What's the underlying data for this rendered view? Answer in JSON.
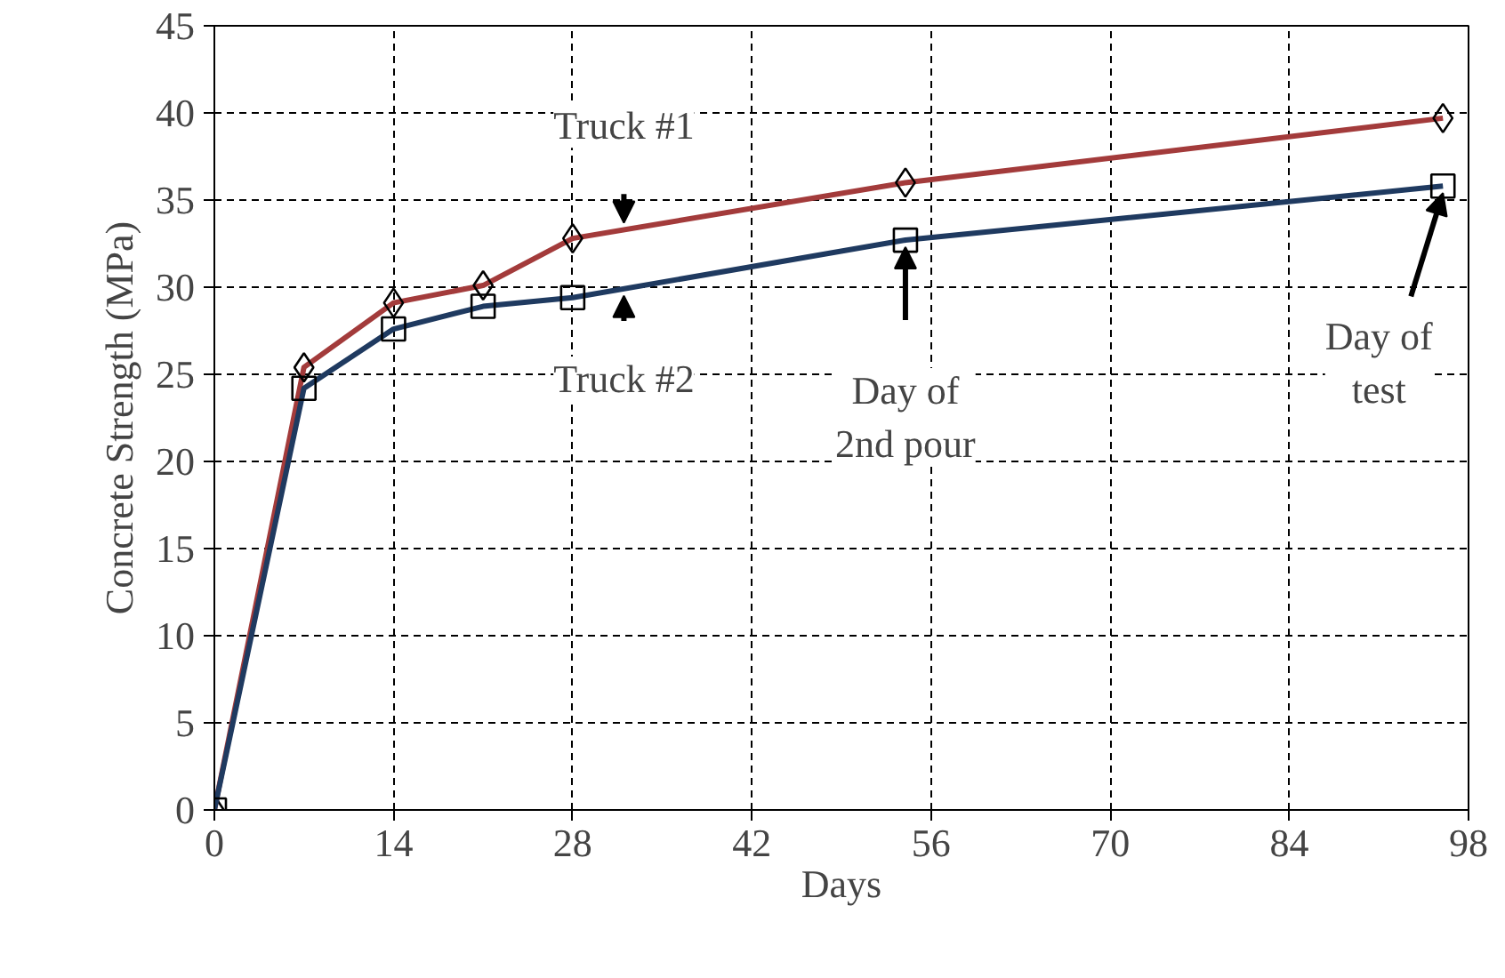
{
  "chart_data": {
    "type": "line",
    "xlabel": "Days",
    "ylabel": "Concrete Strength (MPa)",
    "x": [
      0,
      7,
      14,
      21,
      28,
      54,
      96
    ],
    "series": [
      {
        "color": "#a33b3b",
        "marker": "diamond",
        "values": [
          0,
          25.4,
          29.1,
          30.1,
          32.8,
          36.0,
          39.7
        ]
      },
      {
        "color": "#1f3a60",
        "marker": "square",
        "values": [
          0,
          24.2,
          27.6,
          28.9,
          29.4,
          32.7,
          35.8
        ]
      }
    ],
    "xlim": [
      0,
      98
    ],
    "xticks": [
      0,
      14,
      28,
      42,
      56,
      70,
      84,
      98
    ],
    "ylim": [
      0,
      45
    ],
    "yticks": [
      0,
      5,
      10,
      15,
      20,
      25,
      30,
      35,
      40,
      45
    ],
    "grid": true,
    "line_style": "solid",
    "annotations": [
      {
        "text": "Truck #1",
        "x": 32,
        "y": 33.3
      },
      {
        "text": "Truck #2",
        "x": 32,
        "y": 29.9
      },
      {
        "text": "Day of\n2nd pour",
        "x": 54,
        "y": 32.7
      },
      {
        "text": "Day of\ntest",
        "x": 96,
        "y": 35.8
      }
    ]
  }
}
